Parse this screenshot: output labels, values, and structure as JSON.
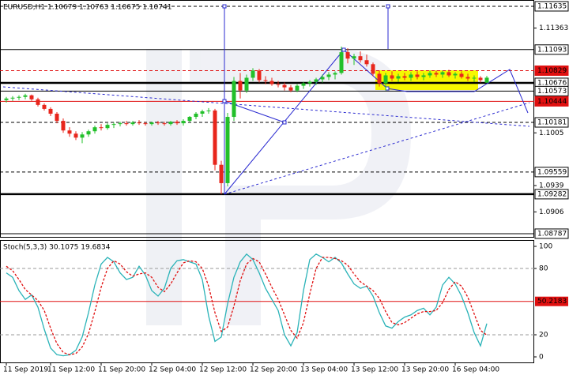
{
  "chart_data": [
    {
      "type": "candlestick",
      "title": "EURUSD,H1  1.10679 1.10763 1.10675 1.10741",
      "open": [
        1.1046,
        1.1048,
        1.1049,
        1.105,
        1.1052,
        1.1047,
        1.104,
        1.1035,
        1.1029,
        1.102,
        1.1008,
        1.1004,
        1.0999,
        1.1003,
        1.1007,
        1.1012,
        1.1011,
        1.1015,
        1.1016,
        1.1017,
        1.1016,
        1.1018,
        1.1017,
        1.1016,
        1.1018,
        1.1017,
        1.1016,
        1.1019,
        1.1017,
        1.102,
        1.1025,
        1.1029,
        1.1032,
        1.1033,
        1.0965,
        1.0942,
        1.1025,
        1.107,
        1.1058,
        1.1074,
        1.1083,
        1.1071,
        1.107,
        1.1066,
        1.1065,
        1.1062,
        1.1058,
        1.1064,
        1.1067,
        1.1069,
        1.1072,
        1.1075,
        1.1078,
        1.108,
        1.1106,
        1.1098,
        1.1101,
        1.1096,
        1.1091,
        1.1079,
        1.1067,
        1.1077,
        1.1073,
        1.1076,
        1.1074,
        1.1078,
        1.1075,
        1.1077,
        1.108,
        1.1078,
        1.1081,
        1.1077,
        1.1079,
        1.1075,
        1.1073,
        1.1074,
        1.10679
      ],
      "high": [
        1.105,
        1.1051,
        1.1052,
        1.1054,
        1.1053,
        1.1049,
        1.1042,
        1.1037,
        1.1031,
        1.1023,
        1.1012,
        1.1007,
        1.1006,
        1.1009,
        1.1014,
        1.1016,
        1.1017,
        1.1018,
        1.1019,
        1.102,
        1.102,
        1.1021,
        1.1019,
        1.1019,
        1.102,
        1.1019,
        1.102,
        1.1021,
        1.1022,
        1.1026,
        1.1031,
        1.1034,
        1.1036,
        1.1035,
        1.097,
        1.103,
        1.1075,
        1.108,
        1.1078,
        1.1086,
        1.1085,
        1.1076,
        1.1074,
        1.107,
        1.1068,
        1.1065,
        1.1066,
        1.1069,
        1.1071,
        1.1074,
        1.1078,
        1.1081,
        1.1082,
        1.1113,
        1.1111,
        1.1104,
        1.1107,
        1.1103,
        1.1093,
        1.1083,
        1.108,
        1.1082,
        1.1079,
        1.108,
        1.1081,
        1.1082,
        1.108,
        1.1083,
        1.1083,
        1.1083,
        1.1084,
        1.1081,
        1.1082,
        1.1079,
        1.1077,
        1.1076,
        1.10763
      ],
      "low": [
        1.1043,
        1.1045,
        1.1046,
        1.1047,
        1.1045,
        1.1038,
        1.1033,
        1.1026,
        1.1017,
        1.1005,
        1.1,
        1.0996,
        1.0992,
        1.1,
        1.1004,
        1.1008,
        1.1009,
        1.1011,
        1.1013,
        1.1014,
        1.1014,
        1.1015,
        1.1014,
        1.1014,
        1.1015,
        1.1014,
        1.1014,
        1.1015,
        1.1014,
        1.1018,
        1.1022,
        1.1025,
        1.1029,
        1.0958,
        1.0928,
        1.0938,
        1.102,
        1.1048,
        1.1055,
        1.107,
        1.1068,
        1.1066,
        1.1064,
        1.1062,
        1.1058,
        1.1056,
        1.1056,
        1.106,
        1.1063,
        1.1065,
        1.1068,
        1.1071,
        1.1072,
        1.1078,
        1.1092,
        1.109,
        1.1093,
        1.1088,
        1.1076,
        1.1063,
        1.1058,
        1.107,
        1.1069,
        1.1071,
        1.107,
        1.1072,
        1.1071,
        1.1074,
        1.1075,
        1.1074,
        1.1075,
        1.1073,
        1.1073,
        1.107,
        1.1069,
        1.1068,
        1.10675
      ],
      "close": [
        1.1048,
        1.1049,
        1.105,
        1.1052,
        1.1047,
        1.104,
        1.1035,
        1.1029,
        1.102,
        1.1008,
        1.1004,
        1.0999,
        1.1003,
        1.1007,
        1.1012,
        1.1011,
        1.1015,
        1.1016,
        1.1017,
        1.1016,
        1.1018,
        1.1017,
        1.1016,
        1.1018,
        1.1017,
        1.1016,
        1.1019,
        1.1017,
        1.102,
        1.1025,
        1.1029,
        1.1032,
        1.1033,
        1.0965,
        1.0942,
        1.1025,
        1.107,
        1.1058,
        1.1074,
        1.1083,
        1.1071,
        1.107,
        1.1066,
        1.1065,
        1.1062,
        1.1058,
        1.1064,
        1.1067,
        1.1069,
        1.1072,
        1.1075,
        1.1078,
        1.108,
        1.1106,
        1.1098,
        1.1101,
        1.1096,
        1.1091,
        1.1079,
        1.1067,
        1.1077,
        1.1073,
        1.1076,
        1.1074,
        1.1078,
        1.1075,
        1.1077,
        1.108,
        1.1078,
        1.1081,
        1.1077,
        1.1079,
        1.1075,
        1.1073,
        1.1074,
        1.1071,
        1.10741
      ],
      "up_color": "#22c02a",
      "down_color": "#e8261c",
      "ylim": [
        1.08747,
        1.11714
      ],
      "yticks": [
        1.11363,
        1.1005,
        1.0939,
        1.0906
      ],
      "levels": [
        1.11635,
        1.11093,
        1.10829,
        1.10676,
        1.10573,
        1.10444,
        1.10181,
        1.09559,
        1.09282,
        1.08787
      ],
      "level_colors": [
        "#000000",
        "#000000",
        "#e01010",
        "#000000",
        "#000000",
        "#e01010",
        "#000000",
        "#000000",
        "#000000",
        "#000000"
      ],
      "level_styles": [
        "dashed",
        "solid",
        "dashed",
        "bold",
        "solid",
        "solid",
        "dashed",
        "dashed",
        "bold",
        "solid"
      ]
    },
    {
      "type": "line",
      "title": "Stoch(5,3,3) 30.1075 19.6834",
      "categories": [
        "11 Sep 2019",
        null,
        null,
        null,
        null,
        null,
        null,
        "11 Sep 12:00",
        null,
        null,
        null,
        null,
        null,
        null,
        null,
        "11 Sep 20:00",
        null,
        null,
        null,
        null,
        null,
        null,
        null,
        "12 Sep 04:00",
        null,
        null,
        null,
        null,
        null,
        null,
        null,
        "12 Sep 12:00",
        null,
        null,
        null,
        null,
        null,
        null,
        null,
        "12 Sep 20:00",
        null,
        null,
        null,
        null,
        null,
        null,
        null,
        "13 Sep 04:00",
        null,
        null,
        null,
        null,
        null,
        null,
        null,
        "13 Sep 12:00",
        null,
        null,
        null,
        null,
        null,
        null,
        null,
        "13 Sep 20:00",
        null,
        null,
        null,
        null,
        null,
        null,
        null,
        "16 Sep 04:00",
        null,
        null,
        null,
        null,
        null
      ],
      "series": [
        {
          "color": "#2ab3b8",
          "style": "solid",
          "values": [
            76,
            72,
            60,
            52,
            56,
            45,
            25,
            8,
            2,
            1,
            2,
            6,
            18,
            40,
            65,
            84,
            90,
            86,
            76,
            70,
            72,
            82,
            74,
            60,
            55,
            62,
            80,
            87,
            88,
            86,
            84,
            70,
            37,
            14,
            18,
            48,
            72,
            86,
            93,
            88,
            76,
            62,
            52,
            42,
            20,
            10,
            22,
            60,
            88,
            93,
            90,
            86,
            90,
            85,
            75,
            66,
            62,
            64,
            55,
            40,
            28,
            26,
            32,
            36,
            38,
            42,
            44,
            38,
            45,
            65,
            72,
            66,
            55,
            40,
            22,
            10,
            30.1075
          ]
        },
        {
          "color": "#e01010",
          "style": "dashed",
          "values": [
            82,
            78,
            70,
            61,
            56,
            51,
            42,
            26,
            12,
            4,
            2,
            3,
            9,
            21,
            41,
            63,
            80,
            87,
            84,
            77,
            73,
            75,
            76,
            72,
            63,
            59,
            66,
            76,
            85,
            87,
            86,
            80,
            64,
            40,
            23,
            27,
            46,
            69,
            84,
            89,
            86,
            75,
            63,
            52,
            38,
            24,
            17,
            31,
            57,
            80,
            90,
            90,
            89,
            87,
            83,
            75,
            68,
            64,
            60,
            53,
            41,
            31,
            29,
            31,
            35,
            39,
            41,
            41,
            42,
            49,
            61,
            68,
            64,
            54,
            39,
            24,
            19.6834
          ]
        }
      ],
      "ylim": [
        -5,
        105
      ],
      "yticks": [
        100,
        80,
        20,
        0
      ],
      "levels": [
        80,
        20,
        50.2183
      ],
      "level_colors": [
        "#9a9a9a",
        "#9a9a9a",
        "#e01010"
      ],
      "level_styles": [
        "dashed",
        "dashed",
        "solid"
      ]
    }
  ]
}
